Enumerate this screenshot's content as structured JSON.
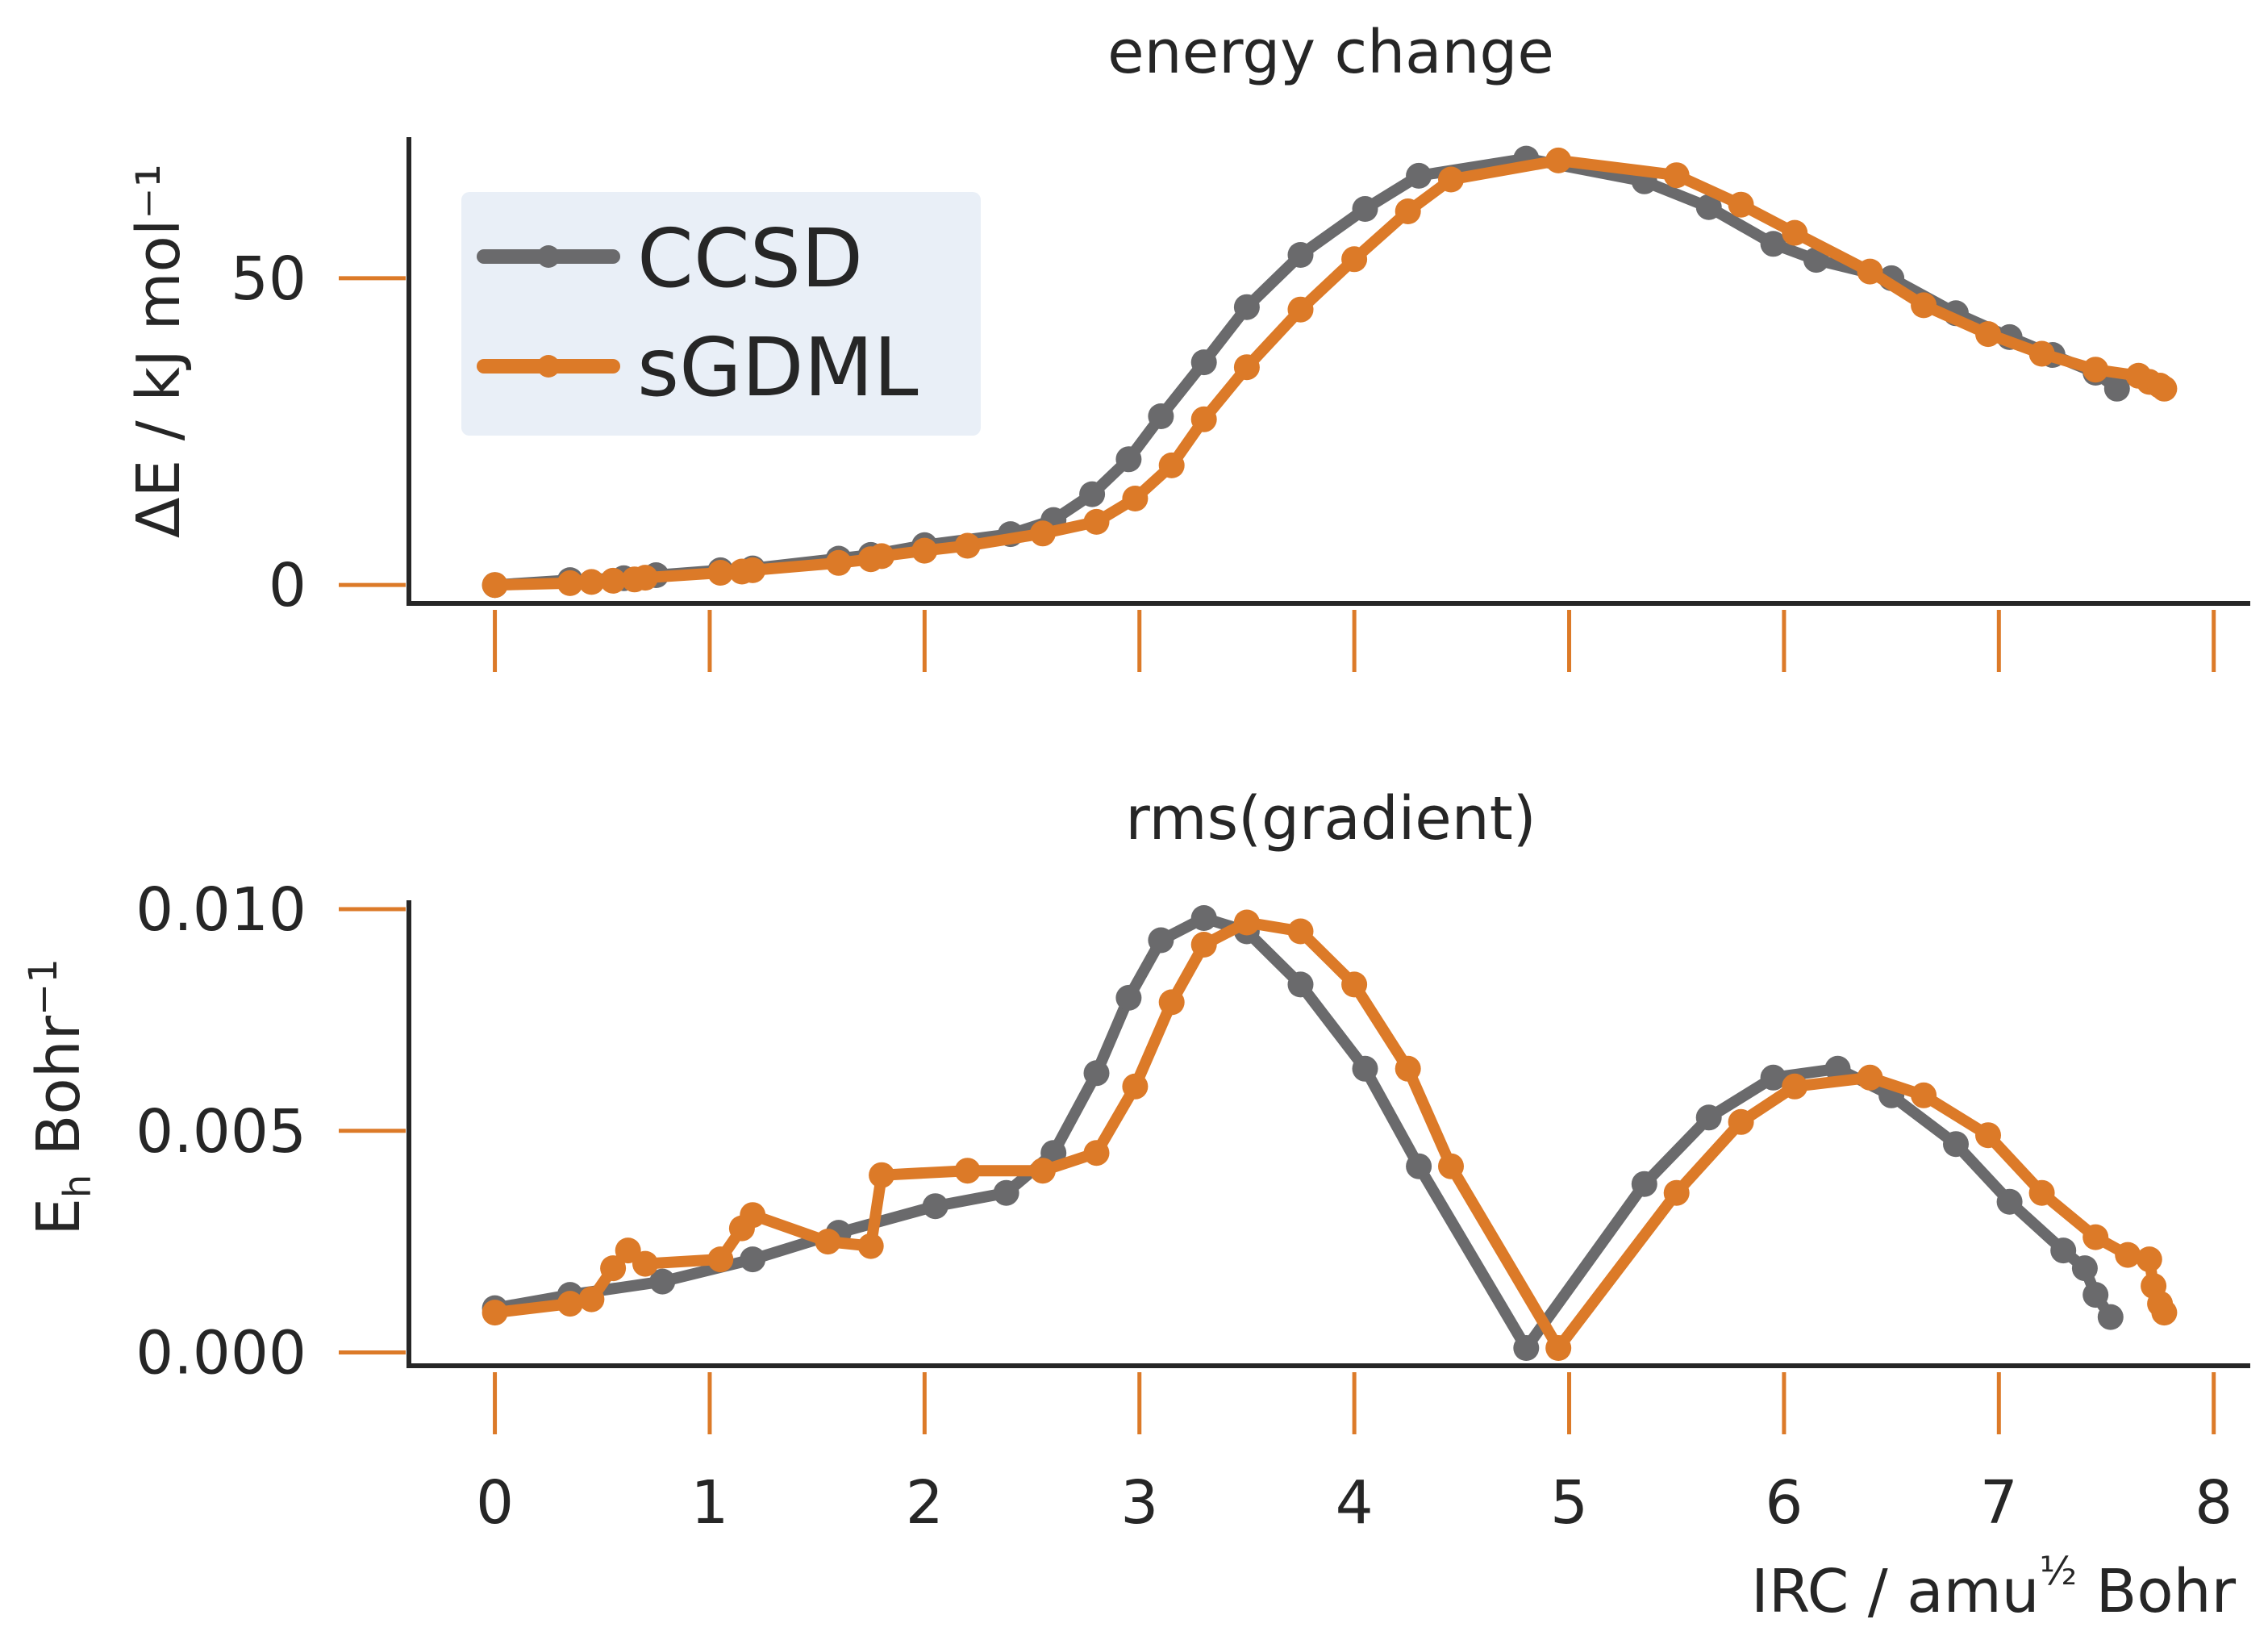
{
  "colors": {
    "ccsd": "#6a6a6c",
    "sgdml": "#dc7a28",
    "axis": "#262626",
    "tick": "#dc7a28",
    "legend_bg": "#e9eff7"
  },
  "chart_data": [
    {
      "id": "energy",
      "type": "line",
      "title": "energy change",
      "ylabel": "ΔE / kJ mol⁻¹",
      "xlim": [
        -0.4,
        8.17
      ],
      "ylim": [
        -3,
        73
      ],
      "yticks": [
        0,
        50
      ],
      "ytick_labels": [
        "0",
        "50"
      ],
      "xticks": [
        0,
        1,
        2,
        3,
        4,
        5,
        6,
        7,
        8
      ],
      "legend": {
        "position": "top-left",
        "entries": [
          "CCSD",
          "sGDML"
        ]
      },
      "series": [
        {
          "name": "CCSD",
          "x": [
            0,
            0.35,
            0.6,
            0.75,
            1.05,
            1.2,
            1.6,
            1.75,
            2.0,
            2.4,
            2.6,
            2.78,
            2.95,
            3.1,
            3.3,
            3.5,
            3.75,
            4.05,
            4.3,
            4.8,
            5.35,
            5.65,
            5.95,
            6.15,
            6.5,
            6.8,
            7.05,
            7.25,
            7.45,
            7.55
          ],
          "y": [
            0,
            0.8,
            1.1,
            1.6,
            2.4,
            2.7,
            4.3,
            4.9,
            6.5,
            8.3,
            10.6,
            14.8,
            20.5,
            27.5,
            36.3,
            45.3,
            53.8,
            61.3,
            66.7,
            69.5,
            65.8,
            61.6,
            55.6,
            53.0,
            50.0,
            44.3,
            40.4,
            37.5,
            34.6,
            32.0
          ]
        },
        {
          "name": "sGDML",
          "x": [
            0,
            0.35,
            0.45,
            0.55,
            0.65,
            0.7,
            1.05,
            1.15,
            1.2,
            1.6,
            1.75,
            1.8,
            2.0,
            2.2,
            2.55,
            2.8,
            2.98,
            3.15,
            3.3,
            3.5,
            3.75,
            4.0,
            4.25,
            4.45,
            4.95,
            5.5,
            5.8,
            6.05,
            6.4,
            6.65,
            6.95,
            7.2,
            7.45,
            7.65,
            7.7,
            7.75,
            7.77
          ],
          "y": [
            0,
            0.3,
            0.5,
            0.7,
            0.9,
            1.2,
            2.0,
            2.2,
            2.4,
            3.6,
            4.2,
            4.7,
            5.6,
            6.4,
            8.4,
            10.3,
            14.1,
            19.5,
            27.0,
            35.5,
            44.9,
            53.1,
            60.9,
            66.1,
            69.2,
            66.8,
            62.0,
            57.4,
            51.1,
            45.6,
            40.9,
            37.7,
            35.1,
            34.1,
            33.1,
            32.5,
            32.0
          ]
        }
      ]
    },
    {
      "id": "gradient",
      "type": "line",
      "title": "rms(gradient)",
      "xlabel": "IRC / amu½ Bohr",
      "ylabel": "Eₕ Bohr⁻¹",
      "xlim": [
        -0.4,
        8.17
      ],
      "ylim": [
        -0.0003,
        0.0102
      ],
      "yticks": [
        0.0,
        0.005,
        0.01
      ],
      "ytick_labels": [
        "0.000",
        "0.005",
        "0.010"
      ],
      "xticks": [
        0,
        1,
        2,
        3,
        4,
        5,
        6,
        7,
        8
      ],
      "xtick_labels": [
        "0",
        "1",
        "2",
        "3",
        "4",
        "5",
        "6",
        "7",
        "8"
      ],
      "series": [
        {
          "name": "CCSD",
          "x": [
            0,
            0.35,
            0.78,
            1.2,
            1.6,
            2.05,
            2.38,
            2.6,
            2.8,
            2.95,
            3.1,
            3.3,
            3.5,
            3.75,
            4.05,
            4.3,
            4.8,
            5.35,
            5.65,
            5.95,
            6.25,
            6.5,
            6.8,
            7.05,
            7.3,
            7.4,
            7.45,
            7.52
          ],
          "y": [
            0.001,
            0.0013,
            0.0016,
            0.0021,
            0.0027,
            0.0033,
            0.0036,
            0.0045,
            0.0063,
            0.008,
            0.0093,
            0.0098,
            0.0095,
            0.0083,
            0.0064,
            0.0042,
            0.0001,
            0.0038,
            0.0053,
            0.0062,
            0.0064,
            0.0058,
            0.0047,
            0.0034,
            0.0023,
            0.0019,
            0.0013,
            0.0008
          ]
        },
        {
          "name": "sGDML",
          "x": [
            0,
            0.35,
            0.45,
            0.55,
            0.62,
            0.7,
            1.05,
            1.15,
            1.2,
            1.55,
            1.75,
            1.8,
            2.2,
            2.55,
            2.8,
            2.98,
            3.15,
            3.3,
            3.5,
            3.75,
            4.0,
            4.25,
            4.45,
            4.95,
            5.5,
            5.8,
            6.05,
            6.4,
            6.65,
            6.95,
            7.2,
            7.45,
            7.6,
            7.7,
            7.72,
            7.75,
            7.77
          ],
          "y": [
            0.0009,
            0.0011,
            0.0012,
            0.0019,
            0.0023,
            0.002,
            0.0021,
            0.0028,
            0.0031,
            0.0025,
            0.0024,
            0.004,
            0.0041,
            0.0041,
            0.0045,
            0.006,
            0.0079,
            0.0092,
            0.0097,
            0.0095,
            0.0083,
            0.0064,
            0.0042,
            0.0001,
            0.0036,
            0.0052,
            0.006,
            0.0062,
            0.0058,
            0.0049,
            0.0036,
            0.0026,
            0.0022,
            0.0021,
            0.0015,
            0.0011,
            0.0009
          ]
        }
      ]
    }
  ]
}
